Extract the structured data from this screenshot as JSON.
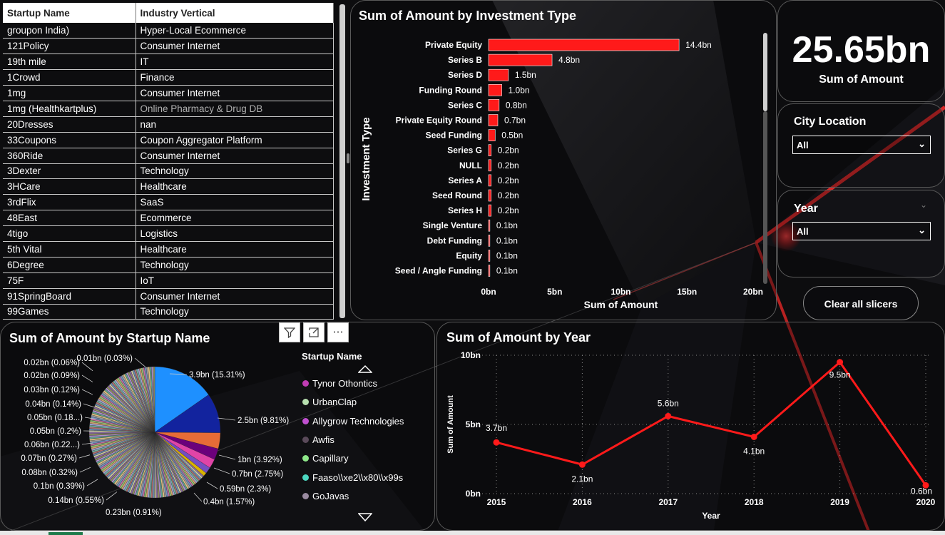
{
  "table": {
    "headers": [
      "Startup Name",
      "Industry Vertical"
    ],
    "rows": [
      [
        "groupon India)",
        "Hyper-Local Ecommerce"
      ],
      [
        "121Policy",
        "Consumer Internet"
      ],
      [
        "19th mile",
        "IT"
      ],
      [
        "1Crowd",
        "Finance"
      ],
      [
        "1mg",
        "Consumer Internet"
      ],
      [
        "1mg (Healthkartplus)",
        "Online Pharmacy & Drug DB"
      ],
      [
        "20Dresses",
        "nan"
      ],
      [
        "33Coupons",
        "Coupon Aggregator Platform"
      ],
      [
        "360Ride",
        "Consumer Internet"
      ],
      [
        "3Dexter",
        "Technology"
      ],
      [
        "3HCare",
        "Healthcare"
      ],
      [
        "3rdFlix",
        "SaaS"
      ],
      [
        "48East",
        "Ecommerce"
      ],
      [
        "4tigo",
        "Logistics"
      ],
      [
        "5th Vital",
        "Healthcare"
      ],
      [
        "6Degree",
        "Technology"
      ],
      [
        "75F",
        "IoT"
      ],
      [
        "91SpringBoard",
        "Consumer Internet"
      ],
      [
        "99Games",
        "Technology"
      ]
    ]
  },
  "kpi": {
    "value": "25.65bn",
    "label": "Sum of Amount"
  },
  "slicers": {
    "city": {
      "title": "City Location",
      "selected": "All"
    },
    "year": {
      "title": "Year",
      "selected": "All"
    },
    "clear_label": "Clear all slicers"
  },
  "colors": {
    "accent": "#ff1a1a",
    "pie_blue": "#1e90ff",
    "pie_navy": "#12239e"
  },
  "chart_data": [
    {
      "type": "bar",
      "title": "Sum of Amount by Investment Type",
      "xlabel": "Sum of Amount",
      "ylabel": "Investment Type",
      "categories": [
        "Private Equity",
        "Series B",
        "Series D",
        "Funding Round",
        "Series C",
        "Private Equity Round",
        "Seed Funding",
        "Series G",
        "NULL",
        "Series A",
        "Seed Round",
        "Series H",
        "Single Venture",
        "Debt Funding",
        "Equity",
        "Seed / Angle Funding"
      ],
      "values": [
        14.4,
        4.8,
        1.5,
        1.0,
        0.8,
        0.7,
        0.5,
        0.2,
        0.2,
        0.2,
        0.2,
        0.2,
        0.1,
        0.1,
        0.1,
        0.1
      ],
      "labels": [
        "14.4bn",
        "4.8bn",
        "1.5bn",
        "1.0bn",
        "0.8bn",
        "0.7bn",
        "0.5bn",
        "0.2bn",
        "0.2bn",
        "0.2bn",
        "0.2bn",
        "0.2bn",
        "0.1bn",
        "0.1bn",
        "0.1bn",
        "0.1bn"
      ],
      "xticks": [
        "0bn",
        "5bn",
        "10bn",
        "15bn",
        "20bn"
      ],
      "xlim": [
        0,
        20
      ],
      "color": "#ff1a1a"
    },
    {
      "type": "pie",
      "title": "Sum of Amount by Startup Name",
      "legend_title": "Startup Name",
      "legend": [
        {
          "name": "Tynor Othontics",
          "color": "#c03cb4"
        },
        {
          "name": "UrbanClap",
          "color": "#b8e0b0"
        },
        {
          "name": "Allygrow Technologies",
          "color": "#c050d0"
        },
        {
          "name": "Awfis",
          "color": "#5a4a5a"
        },
        {
          "name": "Capillary",
          "color": "#8ee88a"
        },
        {
          "name": "Faaso\\\\xe2\\\\x80\\\\x99s",
          "color": "#4cd6c0"
        },
        {
          "name": "GoJavas",
          "color": "#9a8aa0"
        }
      ],
      "labeled_slices": [
        {
          "label": "3.9bn (15.31%)",
          "value": 3.9,
          "color": "#1e90ff"
        },
        {
          "label": "2.5bn (9.81%)",
          "value": 2.5,
          "color": "#12239e"
        },
        {
          "label": "1bn (3.92%)",
          "value": 1.0,
          "color": "#e66c37"
        },
        {
          "label": "0.7bn (2.75%)",
          "value": 0.7,
          "color": "#6b007b"
        },
        {
          "label": "0.59bn (2.3%)",
          "value": 0.59,
          "color": "#e044a7"
        },
        {
          "label": "0.4bn (1.57%)",
          "value": 0.4,
          "color": "#744ec2"
        },
        {
          "label": "0.23bn (0.91%)",
          "value": 0.23,
          "color": "#d9b300"
        },
        {
          "label": "0.14bn (0.55%)",
          "value": 0.14,
          "color": "#d64550"
        },
        {
          "label": "0.1bn (0.39%)",
          "value": 0.1,
          "color": "#197278"
        },
        {
          "label": "0.08bn (0.32%)",
          "value": 0.08,
          "color": "#1aab40"
        },
        {
          "label": "0.07bn (0.27%)",
          "value": 0.07,
          "color": "#15c6f4"
        },
        {
          "label": "0.06bn (0.22...)",
          "value": 0.06,
          "color": "#4092ff"
        },
        {
          "label": "0.05bn (0.2%)",
          "value": 0.05,
          "color": "#ffa058"
        },
        {
          "label": "0.05bn (0.18...)",
          "value": 0.05,
          "color": "#be5dc9"
        },
        {
          "label": "0.04bn (0.14%)",
          "value": 0.04,
          "color": "#f472d0"
        },
        {
          "label": "0.03bn (0.12%)",
          "value": 0.03,
          "color": "#b5a1ff"
        },
        {
          "label": "0.02bn (0.09%)",
          "value": 0.02,
          "color": "#c4a200"
        },
        {
          "label": "0.02bn (0.06%)",
          "value": 0.02,
          "color": "#ff8080"
        },
        {
          "label": "0.01bn (0.03%)",
          "value": 0.01,
          "color": "#00dbbc"
        }
      ]
    },
    {
      "type": "line",
      "title": "Sum of Amount by Year",
      "xlabel": "Year",
      "ylabel": "Sum of Amount",
      "x": [
        "2015",
        "2016",
        "2017",
        "2018",
        "2019",
        "2020"
      ],
      "values": [
        3.7,
        2.1,
        5.6,
        4.1,
        9.5,
        0.6
      ],
      "labels": [
        "3.7bn",
        "2.1bn",
        "5.6bn",
        "4.1bn",
        "9.5bn",
        "0.6bn"
      ],
      "yticks": [
        "0bn",
        "5bn",
        "10bn"
      ],
      "ylim": [
        0,
        10
      ],
      "color": "#ff1a1a",
      "grid": true
    }
  ]
}
